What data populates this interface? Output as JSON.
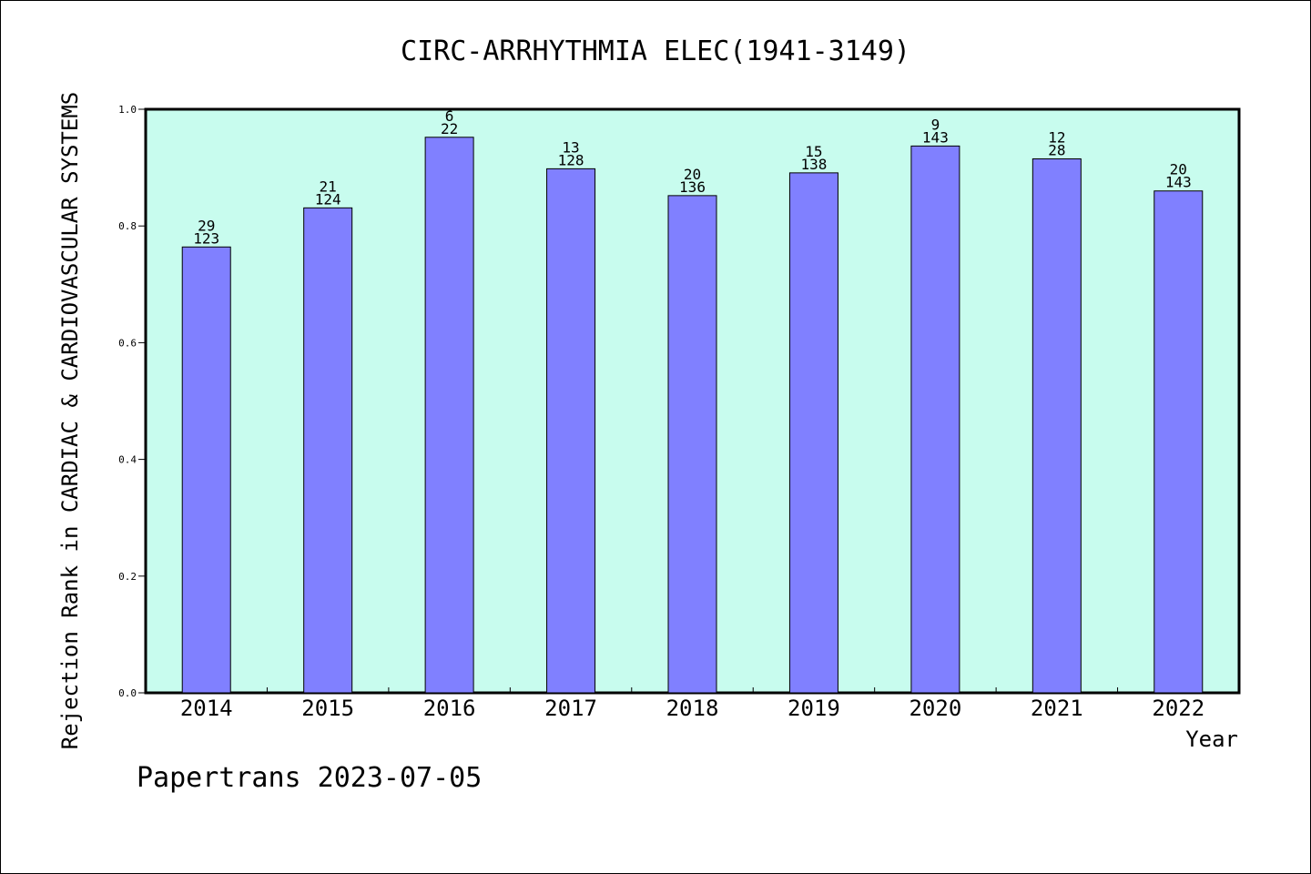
{
  "chart_data": {
    "type": "bar",
    "title": "CIRC-ARRHYTHMIA ELEC(1941-3149)",
    "xlabel": "Year",
    "ylabel": "Rejection Rank in CARDIAC & CARDIOVASCULAR SYSTEMS",
    "ylim": [
      0,
      1.0
    ],
    "yticks": [
      "0.0",
      "0.2",
      "0.4",
      "0.6",
      "0.8",
      "1.0"
    ],
    "categories": [
      "2014",
      "2015",
      "2016",
      "2017",
      "2018",
      "2019",
      "2020",
      "2021",
      "2022"
    ],
    "values": [
      0.764,
      0.831,
      0.952,
      0.898,
      0.852,
      0.891,
      0.937,
      0.915,
      0.86
    ],
    "labels_top": [
      "29",
      "21",
      "6",
      "13",
      "20",
      "15",
      "9",
      "12",
      "20"
    ],
    "labels_bottom": [
      "123",
      "124",
      "22",
      "128",
      "136",
      "138",
      "143",
      "28",
      "143"
    ],
    "grid": false,
    "colors": {
      "plot_background": "#c8fcee",
      "bar_fill": "#8080ff",
      "bar_stroke": "#000000"
    }
  },
  "footer": {
    "credit": "Papertrans 2023-07-05"
  }
}
